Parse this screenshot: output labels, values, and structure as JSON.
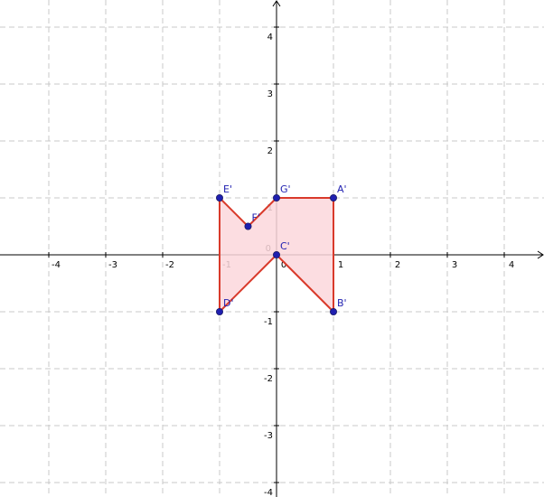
{
  "colors": {
    "grid": "#c8c8c8",
    "axis": "#000000",
    "polygon_stroke": "#d93a2b",
    "polygon_fill": "#fbd7dc",
    "vertex_point": "#1f1fb0",
    "vertex_label": "#1f1fb0"
  },
  "chart_data": {
    "type": "scatter",
    "xlim": [
      -4.8,
      4.6
    ],
    "ylim": [
      -4.2,
      4.4
    ],
    "grid": true,
    "x_ticks": [
      -4,
      -3,
      -2,
      -1,
      0,
      1,
      2,
      3,
      4
    ],
    "y_ticks": [
      -4,
      -3,
      -2,
      -1,
      1,
      2,
      3,
      4
    ],
    "x_tick_labels": [
      "-4",
      "-3",
      "-2",
      "-1",
      "0",
      "1",
      "2",
      "3",
      "4"
    ],
    "y_tick_labels": [
      "-4",
      "-3",
      "-2",
      "-1",
      "1",
      "2",
      "3",
      "4"
    ],
    "origin_label": "0",
    "polygon": {
      "vertex_order": [
        "A'",
        "B'",
        "C'",
        "D'",
        "E'",
        "F'",
        "G'"
      ]
    },
    "points": [
      {
        "label": "A'",
        "x": 1,
        "y": 1
      },
      {
        "label": "B'",
        "x": 1,
        "y": -1
      },
      {
        "label": "C'",
        "x": 0,
        "y": 0
      },
      {
        "label": "D'",
        "x": -1,
        "y": -1
      },
      {
        "label": "E'",
        "x": -1,
        "y": 1
      },
      {
        "label": "F'",
        "x": -0.5,
        "y": 0.5
      },
      {
        "label": "G'",
        "x": 0,
        "y": 1
      }
    ]
  }
}
